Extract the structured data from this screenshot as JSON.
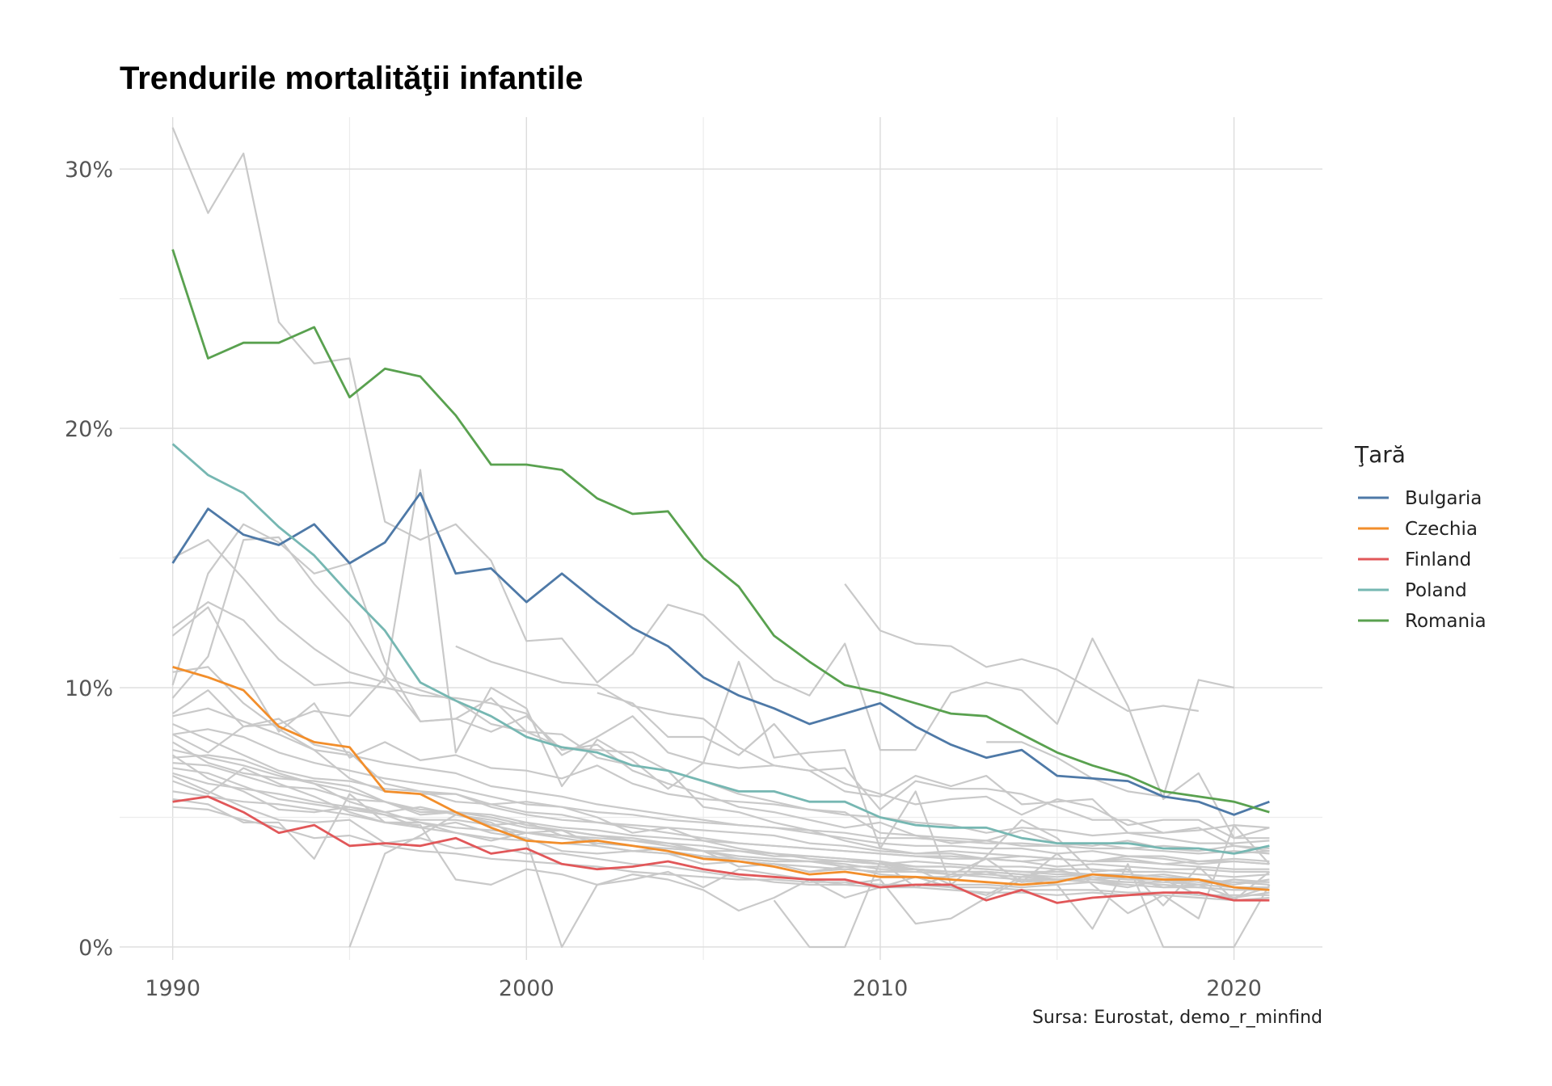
{
  "chart_data": {
    "type": "line",
    "title": "Trendurile mortalităţii infantile",
    "xlabel": "",
    "ylabel": "",
    "caption": "Sursa: Eurostat, demo_r_minfind",
    "xlim": [
      1988.5,
      2022.5
    ],
    "ylim": [
      -0.5,
      32
    ],
    "x_ticks": [
      1990,
      2000,
      2010,
      2020
    ],
    "y_ticks": [
      0,
      10,
      20,
      30
    ],
    "y_tick_labels": [
      "0%",
      "10%",
      "20%",
      "30%"
    ],
    "grid": true,
    "legend": {
      "title": "Ţară",
      "position": "right"
    },
    "x": [
      1990,
      1991,
      1992,
      1993,
      1994,
      1995,
      1996,
      1997,
      1998,
      1999,
      2000,
      2001,
      2002,
      2003,
      2004,
      2005,
      2006,
      2007,
      2008,
      2009,
      2010,
      2011,
      2012,
      2013,
      2014,
      2015,
      2016,
      2017,
      2018,
      2019,
      2020,
      2021
    ],
    "series": [
      {
        "name": "Bulgaria",
        "color": "#4e79a7",
        "values": [
          14.8,
          16.9,
          15.9,
          15.5,
          16.3,
          14.8,
          15.6,
          17.5,
          14.4,
          14.6,
          13.3,
          14.4,
          13.3,
          12.3,
          11.6,
          10.4,
          9.7,
          9.2,
          8.6,
          9.0,
          9.4,
          8.5,
          7.8,
          7.3,
          7.6,
          6.6,
          6.5,
          6.4,
          5.8,
          5.6,
          5.1,
          5.6
        ]
      },
      {
        "name": "Czechia",
        "color": "#f28e2b",
        "values": [
          10.8,
          10.4,
          9.9,
          8.5,
          7.9,
          7.7,
          6.0,
          5.9,
          5.2,
          4.6,
          4.1,
          4.0,
          4.1,
          3.9,
          3.7,
          3.4,
          3.3,
          3.1,
          2.8,
          2.9,
          2.7,
          2.7,
          2.6,
          2.5,
          2.4,
          2.5,
          2.8,
          2.7,
          2.6,
          2.6,
          2.3,
          2.2
        ]
      },
      {
        "name": "Finland",
        "color": "#e15759",
        "values": [
          5.6,
          5.8,
          5.2,
          4.4,
          4.7,
          3.9,
          4.0,
          3.9,
          4.2,
          3.6,
          3.8,
          3.2,
          3.0,
          3.1,
          3.3,
          3.0,
          2.8,
          2.7,
          2.6,
          2.6,
          2.3,
          2.4,
          2.4,
          1.8,
          2.2,
          1.7,
          1.9,
          2.0,
          2.1,
          2.1,
          1.8,
          1.8
        ]
      },
      {
        "name": "Poland",
        "color": "#76b7b2",
        "values": [
          19.4,
          18.2,
          17.5,
          16.2,
          15.1,
          13.6,
          12.2,
          10.2,
          9.5,
          8.9,
          8.1,
          7.7,
          7.5,
          7.0,
          6.8,
          6.4,
          6.0,
          6.0,
          5.6,
          5.6,
          5.0,
          4.7,
          4.6,
          4.6,
          4.2,
          4.0,
          4.0,
          4.0,
          3.8,
          3.8,
          3.6,
          3.9
        ]
      },
      {
        "name": "Romania",
        "color": "#59a14f",
        "values": [
          26.9,
          22.7,
          23.3,
          23.3,
          23.9,
          21.2,
          22.3,
          22.0,
          20.5,
          18.6,
          18.6,
          18.4,
          17.3,
          16.7,
          16.8,
          15.0,
          13.9,
          12.0,
          11.0,
          10.1,
          9.8,
          9.4,
          9.0,
          8.9,
          8.2,
          7.5,
          7.0,
          6.6,
          6.0,
          5.8,
          5.6,
          5.2
        ]
      }
    ],
    "background_series": [
      {
        "values": [
          31.6,
          28.3,
          30.6,
          24.1,
          22.5,
          22.7,
          16.4,
          15.7,
          16.3,
          14.9,
          11.8,
          11.9,
          10.2,
          11.3,
          13.2,
          12.8,
          11.5,
          10.3,
          9.7,
          11.7,
          7.6,
          7.6,
          9.8,
          10.2,
          9.9,
          8.6,
          11.9,
          9.3,
          5.7,
          6.7,
          4.2,
          4.6
        ]
      },
      {
        "values": [
          15.0,
          15.7,
          14.2,
          12.6,
          11.5,
          10.6,
          10.2,
          18.4,
          7.5,
          10.0,
          9.2,
          6.2,
          8.0,
          7.2,
          6.1,
          7.1,
          11.0,
          7.3,
          7.5,
          7.6,
          3.8,
          6.0,
          2.4,
          3.5,
          4.9,
          4.2,
          2.9,
          3.0,
          1.6,
          3.1,
          1.8,
          2.9
        ]
      },
      {
        "values": [
          12.3,
          13.3,
          12.6,
          11.1,
          10.1,
          10.2,
          10.0,
          9.7,
          9.6,
          9.4,
          9.0,
          7.4,
          8.1,
          8.9,
          7.5,
          7.1,
          6.9,
          7.0,
          6.8,
          6.9,
          5.3,
          6.4,
          6.1,
          6.1,
          5.9,
          5.4,
          4.9,
          4.9,
          4.4,
          4.5,
          4.7,
          4.6
        ]
      },
      {
        "values": [
          10.1,
          14.4,
          16.3,
          15.6,
          14.4,
          14.8,
          11.0,
          8.7,
          8.8,
          8.3,
          8.9,
          7.6,
          7.8,
          6.8,
          6.3,
          5.9,
          5.4,
          5.2,
          4.9,
          4.6,
          4.8,
          4.3,
          4.2,
          4.1,
          4.5,
          4.0,
          3.9,
          4.1,
          3.8,
          3.7,
          3.9,
          3.8
        ]
      },
      {
        "values": [
          9.6,
          11.2,
          15.7,
          15.8,
          14.0,
          12.5,
          10.4,
          9.9,
          9.5,
          8.6,
          8.3,
          8.2,
          7.3,
          7.0,
          6.8,
          5.4,
          5.2,
          4.8,
          4.5,
          4.1,
          3.8,
          3.6,
          3.7,
          3.6,
          3.5,
          3.4,
          3.3,
          3.5,
          3.4,
          3.2,
          3.3,
          3.2
        ]
      },
      {
        "values": [
          9.0,
          9.9,
          8.5,
          8.6,
          9.1,
          8.9,
          10.4,
          8.7,
          8.8,
          9.6,
          8.3,
          7.7,
          7.6,
          7.5,
          6.8,
          6.4,
          5.9,
          5.6,
          5.3,
          5.2,
          4.4,
          4.3,
          4.0,
          4.1,
          3.9,
          3.9,
          4.0,
          3.8,
          3.9,
          3.8,
          3.6,
          3.7
        ]
      },
      {
        "values": [
          8.2,
          7.5,
          8.5,
          8.8,
          7.8,
          7.5,
          6.3,
          6.0,
          5.6,
          5.5,
          5.6,
          5.4,
          5.0,
          4.4,
          4.6,
          4.1,
          3.8,
          3.6,
          3.4,
          3.3,
          3.2,
          3.0,
          2.9,
          2.9,
          2.8,
          2.6,
          2.7,
          2.6,
          2.6,
          2.4,
          2.6,
          2.5
        ]
      },
      {
        "values": [
          7.6,
          7.3,
          7.0,
          6.6,
          6.3,
          6.0,
          5.6,
          5.3,
          5.2,
          5.0,
          4.7,
          4.5,
          4.3,
          4.1,
          4.0,
          3.7,
          3.5,
          3.4,
          3.3,
          3.3,
          3.2,
          3.1,
          3.1,
          3.0,
          2.9,
          2.9,
          2.8,
          2.8,
          2.7,
          2.6,
          2.5,
          2.5
        ]
      },
      {
        "values": [
          7.9,
          7.1,
          6.7,
          6.5,
          6.4,
          6.2,
          5.6,
          5.2,
          5.2,
          5.1,
          4.8,
          4.6,
          4.5,
          4.3,
          4.2,
          4.1,
          4.0,
          3.9,
          3.8,
          3.7,
          3.6,
          3.5,
          3.5,
          3.4,
          3.3,
          3.4,
          3.3,
          3.3,
          3.2,
          3.1,
          3.0,
          3.0
        ]
      },
      {
        "values": [
          7.3,
          7.4,
          7.2,
          6.7,
          6.3,
          5.6,
          5.2,
          5.4,
          5.1,
          4.9,
          4.6,
          4.5,
          4.3,
          4.2,
          4.0,
          3.9,
          3.7,
          3.6,
          3.5,
          3.4,
          3.2,
          3.3,
          3.2,
          3.1,
          3.1,
          3.0,
          3.0,
          2.9,
          2.9,
          2.8,
          2.7,
          2.8
        ]
      },
      {
        "values": [
          7.1,
          7.0,
          6.6,
          6.2,
          6.1,
          5.7,
          5.6,
          5.1,
          5.2,
          4.7,
          4.8,
          4.3,
          4.2,
          4.1,
          3.9,
          3.7,
          3.7,
          3.5,
          3.5,
          3.4,
          3.3,
          3.1,
          3.1,
          3.0,
          2.9,
          2.8,
          2.8,
          2.7,
          2.8,
          2.6,
          2.4,
          2.6
        ]
      },
      {
        "values": [
          6.9,
          6.7,
          6.2,
          5.7,
          5.5,
          5.3,
          5.1,
          4.9,
          4.9,
          4.7,
          4.4,
          4.3,
          4.1,
          3.9,
          3.8,
          3.7,
          3.4,
          3.3,
          3.3,
          3.2,
          3.0,
          3.0,
          2.9,
          2.9,
          2.8,
          2.7,
          2.8,
          2.6,
          2.6,
          2.5,
          2.5,
          2.4
        ]
      },
      {
        "values": [
          6.7,
          6.3,
          6.1,
          5.9,
          5.6,
          5.4,
          5.2,
          4.8,
          4.6,
          4.5,
          4.4,
          4.2,
          4.0,
          3.9,
          3.7,
          3.5,
          3.4,
          3.3,
          3.3,
          3.1,
          3.1,
          3.0,
          2.8,
          2.8,
          2.7,
          2.6,
          2.6,
          2.5,
          2.5,
          2.4,
          2.3,
          2.3
        ]
      },
      {
        "values": [
          6.0,
          5.8,
          5.6,
          5.5,
          5.3,
          5.1,
          4.8,
          4.6,
          4.4,
          4.2,
          4.1,
          4.0,
          3.9,
          3.7,
          3.6,
          3.5,
          3.3,
          3.2,
          3.1,
          3.0,
          2.9,
          2.9,
          2.8,
          2.7,
          2.6,
          2.6,
          2.5,
          2.5,
          2.4,
          2.3,
          2.2,
          2.3
        ]
      },
      {
        "values": [
          5.7,
          5.5,
          4.8,
          4.8,
          3.4,
          5.9,
          4.8,
          4.7,
          2.6,
          2.4,
          3.0,
          2.8,
          2.4,
          2.6,
          2.9,
          2.3,
          3.0,
          2.8,
          2.6,
          1.9,
          2.3,
          2.7,
          2.3,
          2.0,
          2.7,
          3.0,
          2.6,
          2.7,
          2.3,
          2.4,
          1.9,
          2.3
        ]
      },
      {
        "values": [
          7.4,
          6.5,
          6.0,
          5.3,
          5.2,
          5.4,
          5.1,
          4.6,
          4.8,
          4.4,
          4.2,
          3.7,
          3.6,
          3.7,
          3.6,
          3.2,
          3.3,
          3.2,
          2.9,
          3.1,
          2.8,
          2.7,
          2.7,
          2.9,
          2.5,
          2.6,
          2.5,
          2.4,
          2.3,
          2.3,
          2.2,
          2.2
        ]
      },
      {
        "values": [
          6.4,
          5.9,
          6.9,
          6.3,
          5.8,
          5.2,
          4.8,
          4.8,
          4.4,
          4.1,
          4.4,
          4.5,
          3.9,
          3.7,
          3.8,
          3.7,
          3.1,
          3.2,
          2.9,
          3.0,
          2.9,
          3.0,
          2.4,
          2.4,
          2.3,
          2.4,
          2.5,
          2.3,
          2.6,
          2.0,
          1.9,
          2.1
        ]
      },
      {
        "values": [
          8.6,
          8.0,
          7.4,
          6.8,
          6.5,
          6.4,
          6.1,
          6.0,
          5.9,
          5.5,
          5.2,
          5.1,
          4.8,
          4.7,
          4.6,
          4.5,
          4.4,
          4.3,
          4.0,
          3.9,
          3.7,
          3.6,
          3.6,
          3.4,
          3.5,
          3.4,
          3.3,
          3.4,
          3.2,
          3.3,
          3.4,
          3.3
        ]
      },
      {
        "values": [
          10.6,
          10.8,
          9.4,
          8.4,
          7.6,
          7.4,
          7.1,
          6.9,
          6.7,
          6.2,
          6.0,
          5.8,
          5.5,
          5.3,
          5.1,
          4.9,
          4.7,
          4.6,
          4.4,
          4.2,
          4.0,
          3.9,
          3.9,
          3.8,
          3.8,
          3.6,
          3.7,
          3.5,
          3.5,
          3.3,
          3.3,
          3.2
        ]
      },
      {
        "values": [
          6.6,
          6.0,
          5.4,
          4.9,
          4.8,
          4.9,
          4.0,
          4.2,
          3.8,
          3.9,
          3.6,
          3.6,
          3.4,
          3.2,
          3.1,
          2.9,
          2.7,
          2.5,
          2.4,
          2.4,
          2.3,
          2.3,
          2.2,
          2.1,
          2.1,
          2.0,
          2.1,
          2.0,
          2.0,
          1.9,
          1.8,
          1.9
        ]
      },
      {
        "values": [
          8.9,
          9.2,
          8.7,
          8.2,
          7.6,
          6.5,
          6.0,
          5.9,
          5.9,
          5.4,
          5.1,
          4.9,
          4.8,
          4.6,
          4.4,
          4.2,
          4.0,
          3.9,
          3.8,
          3.7,
          3.6,
          3.5,
          3.4,
          3.4,
          3.3,
          3.1,
          3.2,
          3.1,
          3.0,
          3.0,
          2.9,
          2.9
        ]
      },
      {
        "values": [
          8.2,
          8.4,
          8.1,
          7.5,
          7.1,
          6.8,
          6.5,
          6.3,
          6.1,
          5.8,
          5.5,
          5.4,
          5.2,
          5.1,
          4.9,
          4.8,
          4.7,
          4.6,
          4.5,
          4.4,
          4.2,
          4.2,
          4.1,
          4.0,
          4.0,
          3.9,
          3.8,
          3.8,
          3.7,
          3.6,
          3.7,
          3.6
        ]
      },
      {
        "values": [
          12.0,
          13.1,
          10.6,
          8.3,
          9.4,
          7.3,
          7.9,
          7.2,
          7.4,
          6.9,
          6.8,
          6.5,
          7.0,
          6.3,
          5.9,
          5.7,
          5.6,
          5.5,
          5.3,
          5.1,
          5.0,
          4.8,
          4.7,
          4.4,
          4.6,
          4.5,
          4.3,
          4.4,
          4.2,
          4.0,
          4.0,
          4.1
        ]
      },
      {
        "values": [
          null,
          null,
          null,
          null,
          null,
          null,
          null,
          null,
          11.6,
          11.0,
          10.6,
          10.2,
          10.1,
          9.3,
          9.0,
          8.8,
          7.7,
          7.0,
          6.8,
          6.0,
          5.8,
          6.6,
          6.2,
          6.6,
          5.5,
          5.6,
          5.7,
          4.4,
          4.4,
          4.6,
          3.9,
          3.7
        ]
      },
      {
        "values": [
          null,
          null,
          null,
          null,
          null,
          null,
          null,
          null,
          null,
          null,
          null,
          null,
          9.8,
          9.4,
          8.1,
          8.1,
          7.4,
          8.6,
          7.0,
          6.3,
          5.9,
          5.5,
          5.7,
          5.8,
          5.1,
          5.7,
          5.4,
          4.7,
          4.9,
          4.9,
          4.2,
          4.2
        ]
      },
      {
        "values": [
          null,
          null,
          null,
          null,
          null,
          null,
          null,
          null,
          null,
          null,
          null,
          null,
          null,
          null,
          null,
          8.3,
          null,
          null,
          null,
          14.0,
          12.2,
          11.7,
          11.6,
          10.8,
          11.1,
          10.7,
          9.9,
          9.1,
          9.3,
          9.1,
          null,
          null
        ]
      },
      {
        "values": [
          null,
          null,
          null,
          null,
          null,
          null,
          null,
          null,
          null,
          null,
          null,
          null,
          null,
          null,
          null,
          null,
          null,
          null,
          null,
          null,
          null,
          null,
          null,
          7.9,
          7.9,
          7.3,
          6.5,
          6.0,
          5.8,
          10.3,
          10.0,
          null
        ]
      },
      {
        "values": [
          null,
          null,
          null,
          null,
          null,
          0.0,
          3.6,
          4.3,
          5.1,
          4.8,
          4.1,
          0.0,
          2.4,
          2.8,
          2.6,
          2.2,
          1.4,
          1.9,
          2.6,
          2.4,
          2.6,
          0.9,
          1.1,
          1.9,
          2.6,
          2.4,
          0.7,
          3.2,
          0.0,
          0.0,
          0.0,
          2.4
        ]
      },
      {
        "values": [
          null,
          null,
          null,
          null,
          null,
          null,
          null,
          null,
          null,
          null,
          null,
          null,
          null,
          null,
          null,
          null,
          null,
          1.8,
          0.0,
          0.0,
          3.3,
          2.3,
          2.8,
          3.4,
          2.5,
          3.6,
          2.4,
          1.3,
          2.0,
          1.1,
          4.7,
          3.2
        ]
      },
      {
        "values": [
          5.4,
          5.3,
          4.9,
          4.6,
          4.2,
          4.3,
          3.9,
          3.7,
          3.6,
          3.4,
          3.3,
          3.2,
          3.1,
          2.9,
          2.8,
          2.7,
          2.6,
          2.6,
          2.5,
          2.5,
          2.4,
          2.4,
          2.3,
          2.3,
          2.2,
          2.2,
          2.2,
          2.1,
          2.1,
          2.0,
          2.0,
          2.0
        ]
      }
    ]
  }
}
